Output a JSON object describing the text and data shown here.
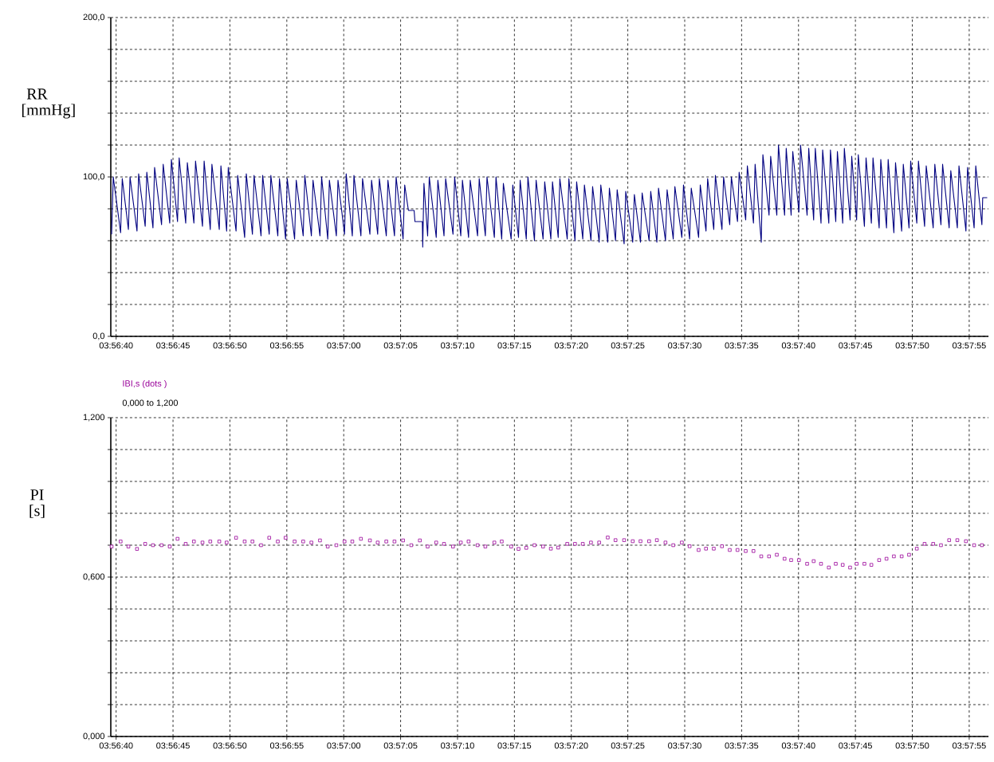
{
  "chart_data": [
    {
      "type": "line",
      "ylabel": "RR [mmHg]",
      "grid": true,
      "xlim": [
        3.94431,
        3.96575
      ],
      "xticks": [
        {
          "value": 3.94444,
          "label": "03:56:40"
        },
        {
          "value": 3.94583,
          "label": "03:56:45"
        },
        {
          "value": 3.94722,
          "label": "03:56:50"
        },
        {
          "value": 3.94861,
          "label": "03:56:55"
        },
        {
          "value": 3.95,
          "label": "03:57:00"
        },
        {
          "value": 3.95139,
          "label": "03:57:05"
        },
        {
          "value": 3.95278,
          "label": "03:57:10"
        },
        {
          "value": 3.95417,
          "label": "03:57:15"
        },
        {
          "value": 3.95556,
          "label": "03:57:20"
        },
        {
          "value": 3.95694,
          "label": "03:57:25"
        },
        {
          "value": 3.95833,
          "label": "03:57:30"
        },
        {
          "value": 3.95972,
          "label": "03:57:35"
        },
        {
          "value": 3.96111,
          "label": "03:57:40"
        },
        {
          "value": 3.9625,
          "label": "03:57:45"
        },
        {
          "value": 3.96389,
          "label": "03:57:50"
        },
        {
          "value": 3.96528,
          "label": "03:57:55"
        }
      ],
      "ylim": [
        0,
        200
      ],
      "yticks": [
        {
          "value": 0,
          "label": "0,0"
        },
        {
          "value": 20,
          "label": null
        },
        {
          "value": 40,
          "label": null
        },
        {
          "value": 60,
          "label": null
        },
        {
          "value": 80,
          "label": null
        },
        {
          "value": 100,
          "label": "100,0"
        },
        {
          "value": 120,
          "label": null
        },
        {
          "value": 140,
          "label": null
        },
        {
          "value": 160,
          "label": null
        },
        {
          "value": 180,
          "label": null
        },
        {
          "value": 200,
          "label": "200,0"
        }
      ],
      "series": [
        {
          "color": "#000080",
          "x": [
            3.94433,
            3.94437,
            3.94455,
            3.94459,
            3.94474,
            3.94478,
            3.94495,
            3.94499,
            3.94515,
            3.94519,
            3.94534,
            3.94538,
            3.94555,
            3.94559,
            3.94575,
            3.94579,
            3.94594,
            3.94598,
            3.94614,
            3.94618,
            3.94634,
            3.94638,
            3.94655,
            3.94659,
            3.94674,
            3.94678,
            3.94696,
            3.947,
            3.94714,
            3.94718,
            3.94737,
            3.94741,
            3.94758,
            3.94762,
            3.94777,
            3.94781,
            3.94798,
            3.94802,
            3.94818,
            3.94822,
            3.94839,
            3.94843,
            3.94858,
            3.94862,
            3.9488,
            3.94884,
            3.94901,
            3.94905,
            3.94921,
            3.94925,
            3.94942,
            3.94946,
            3.94961,
            3.94965,
            3.94982,
            3.94986,
            3.95002,
            3.95006,
            3.95021,
            3.95025,
            3.95042,
            3.95046,
            3.95064,
            3.95068,
            3.95083,
            3.95087,
            3.95104,
            3.95108,
            3.95124,
            3.95128,
            3.95145,
            3.95149,
            3.95158,
            3.95172,
            3.95174,
            3.95192,
            3.95193,
            3.95196,
            3.95205,
            3.95209,
            3.95226,
            3.9523,
            3.95245,
            3.95249,
            3.95267,
            3.95271,
            3.95286,
            3.9529,
            3.95305,
            3.95309,
            3.95327,
            3.95331,
            3.95346,
            3.9535,
            3.95368,
            3.95372,
            3.95386,
            3.9539,
            3.95409,
            3.95413,
            3.95427,
            3.95431,
            3.95446,
            3.9545,
            3.95466,
            3.9547,
            3.95487,
            3.95491,
            3.95506,
            3.9551,
            3.95524,
            3.95528,
            3.95546,
            3.9555,
            3.95565,
            3.95569,
            3.95584,
            3.95588,
            3.95604,
            3.95608,
            3.95624,
            3.95628,
            3.95645,
            3.95649,
            3.95664,
            3.95668,
            3.95685,
            3.95689,
            3.95706,
            3.9571,
            3.95725,
            3.95729,
            3.95746,
            3.9575,
            3.95765,
            3.95769,
            3.95786,
            3.9579,
            3.95805,
            3.95809,
            3.95826,
            3.9583,
            3.95845,
            3.95849,
            3.95867,
            3.95871,
            3.95885,
            3.95889,
            3.95904,
            3.95908,
            3.95924,
            3.95928,
            3.95943,
            3.95947,
            3.95962,
            3.95966,
            3.95982,
            3.95986,
            3.96001,
            3.96005,
            3.9602,
            3.96024,
            3.96039,
            3.96043,
            3.96058,
            3.96062,
            3.96077,
            3.96081,
            3.96093,
            3.96097,
            3.96112,
            3.96116,
            3.96132,
            3.96136,
            3.96148,
            3.96152,
            3.96166,
            3.9617,
            3.96185,
            3.96189,
            3.96202,
            3.96206,
            3.96219,
            3.96223,
            3.96237,
            3.96241,
            3.96253,
            3.96257,
            3.96272,
            3.96276,
            3.96289,
            3.96293,
            3.96308,
            3.96312,
            3.96326,
            3.9633,
            3.96344,
            3.96348,
            3.96363,
            3.96367,
            3.96381,
            3.96385,
            3.964,
            3.96404,
            3.96419,
            3.96423,
            3.9644,
            3.96444,
            3.96459,
            3.96463,
            3.96479,
            3.96483,
            3.96499,
            3.96503,
            3.9652,
            3.96524,
            3.9654,
            3.96544,
            3.96559,
            3.96561,
            3.96572
          ],
          "values": [
            64,
            100,
            65,
            99,
            67,
            100,
            66,
            102,
            69,
            103,
            68,
            106,
            70,
            108,
            71,
            111,
            72,
            112,
            71,
            109,
            71,
            110,
            69,
            110,
            67,
            108,
            67,
            107,
            66,
            106,
            66,
            101,
            62,
            102,
            64,
            101,
            63,
            101,
            64,
            101,
            63,
            99,
            61,
            99,
            61,
            98,
            63,
            101,
            63,
            98,
            63,
            100,
            61,
            98,
            63,
            98,
            64,
            102,
            63,
            101,
            63,
            99,
            64,
            98,
            64,
            99,
            63,
            98,
            63,
            100,
            61,
            95,
            79,
            79,
            72,
            72,
            56,
            96,
            63,
            100,
            62,
            98,
            63,
            99,
            64,
            100,
            63,
            98,
            62,
            98,
            63,
            99,
            63,
            100,
            62,
            100,
            61,
            96,
            61,
            95,
            62,
            98,
            61,
            100,
            60,
            98,
            61,
            97,
            61,
            97,
            62,
            99,
            61,
            99,
            60,
            97,
            61,
            95,
            60,
            94,
            59,
            95,
            59,
            93,
            60,
            92,
            58,
            91,
            59,
            89,
            59,
            90,
            60,
            91,
            59,
            93,
            60,
            92,
            61,
            94,
            62,
            95,
            61,
            93,
            62,
            95,
            66,
            99,
            67,
            101,
            67,
            100,
            70,
            100,
            72,
            103,
            73,
            107,
            71,
            108,
            59,
            114,
            76,
            113,
            76,
            120,
            76,
            118,
            76,
            116,
            78,
            120,
            76,
            118,
            73,
            118,
            71,
            117,
            71,
            117,
            72,
            116,
            71,
            118,
            73,
            113,
            73,
            114,
            69,
            112,
            71,
            112,
            68,
            111,
            68,
            111,
            65,
            109,
            66,
            108,
            68,
            110,
            71,
            110,
            69,
            107,
            68,
            108,
            70,
            108,
            68,
            104,
            68,
            107,
            66,
            106,
            68,
            107,
            70,
            87,
            87
          ]
        }
      ]
    },
    {
      "type": "scatter",
      "ylabel": "PI [s]",
      "grid": true,
      "marker": "square",
      "annotations": [
        "IBI,s (dots )",
        "0,000 to 1,200"
      ],
      "xlim": [
        3.94431,
        3.96575
      ],
      "xticks": [
        {
          "value": 3.94444,
          "label": "03:56:40"
        },
        {
          "value": 3.94583,
          "label": "03:56:45"
        },
        {
          "value": 3.94722,
          "label": "03:56:50"
        },
        {
          "value": 3.94861,
          "label": "03:56:55"
        },
        {
          "value": 3.95,
          "label": "03:57:00"
        },
        {
          "value": 3.95139,
          "label": "03:57:05"
        },
        {
          "value": 3.95278,
          "label": "03:57:10"
        },
        {
          "value": 3.95417,
          "label": "03:57:15"
        },
        {
          "value": 3.95556,
          "label": "03:57:20"
        },
        {
          "value": 3.95694,
          "label": "03:57:25"
        },
        {
          "value": 3.95833,
          "label": "03:57:30"
        },
        {
          "value": 3.95972,
          "label": "03:57:35"
        },
        {
          "value": 3.96111,
          "label": "03:57:40"
        },
        {
          "value": 3.9625,
          "label": "03:57:45"
        },
        {
          "value": 3.96389,
          "label": "03:57:50"
        },
        {
          "value": 3.96528,
          "label": "03:57:55"
        }
      ],
      "ylim": [
        0,
        1.2
      ],
      "yticks": [
        {
          "value": 0,
          "label": "0,000"
        },
        {
          "value": 0.12,
          "label": null
        },
        {
          "value": 0.24,
          "label": null
        },
        {
          "value": 0.36,
          "label": null
        },
        {
          "value": 0.48,
          "label": null
        },
        {
          "value": 0.6,
          "label": "0,600"
        },
        {
          "value": 0.72,
          "label": null
        },
        {
          "value": 0.84,
          "label": null
        },
        {
          "value": 0.96,
          "label": null
        },
        {
          "value": 1.08,
          "label": null
        },
        {
          "value": 1.2,
          "label": "1,200"
        }
      ],
      "series": [
        {
          "color": "#990099",
          "x": [
            3.94433,
            3.94455,
            3.94474,
            3.94495,
            3.94515,
            3.94534,
            3.94555,
            3.94575,
            3.94594,
            3.94614,
            3.94634,
            3.94655,
            3.94674,
            3.94696,
            3.94714,
            3.94737,
            3.94758,
            3.94777,
            3.94798,
            3.94818,
            3.94839,
            3.94858,
            3.9488,
            3.94901,
            3.94921,
            3.94942,
            3.94961,
            3.94982,
            3.95002,
            3.95021,
            3.95042,
            3.95064,
            3.95083,
            3.95104,
            3.95124,
            3.95145,
            3.95165,
            3.95186,
            3.95205,
            3.95226,
            3.95245,
            3.95267,
            3.95286,
            3.95305,
            3.95327,
            3.95346,
            3.95368,
            3.95386,
            3.95409,
            3.95427,
            3.95446,
            3.95466,
            3.95487,
            3.95506,
            3.95524,
            3.95546,
            3.95565,
            3.95584,
            3.95604,
            3.95624,
            3.95645,
            3.95664,
            3.95685,
            3.95706,
            3.95725,
            3.95746,
            3.95765,
            3.95786,
            3.95805,
            3.95826,
            3.95845,
            3.95867,
            3.95885,
            3.95904,
            3.95924,
            3.95943,
            3.95962,
            3.95982,
            3.96001,
            3.9602,
            3.96039,
            3.96058,
            3.96077,
            3.96093,
            3.96112,
            3.96132,
            3.96148,
            3.96166,
            3.96185,
            3.96202,
            3.96219,
            3.96237,
            3.96253,
            3.96272,
            3.96289,
            3.96308,
            3.96326,
            3.96344,
            3.96363,
            3.96381,
            3.964,
            3.96419,
            3.9644,
            3.96459,
            3.96479,
            3.96499,
            3.9652,
            3.9654,
            3.96559
          ],
          "values": [
            0.715,
            0.734,
            0.715,
            0.706,
            0.725,
            0.72,
            0.72,
            0.715,
            0.744,
            0.725,
            0.734,
            0.73,
            0.734,
            0.734,
            0.73,
            0.748,
            0.734,
            0.734,
            0.72,
            0.748,
            0.734,
            0.748,
            0.734,
            0.734,
            0.73,
            0.738,
            0.715,
            0.72,
            0.734,
            0.734,
            0.744,
            0.738,
            0.73,
            0.734,
            0.734,
            0.738,
            0.72,
            0.738,
            0.715,
            0.73,
            0.725,
            0.715,
            0.73,
            0.734,
            0.72,
            0.715,
            0.73,
            0.734,
            0.715,
            0.706,
            0.71,
            0.72,
            0.715,
            0.707,
            0.711,
            0.725,
            0.725,
            0.725,
            0.73,
            0.73,
            0.749,
            0.739,
            0.739,
            0.735,
            0.735,
            0.735,
            0.739,
            0.73,
            0.72,
            0.73,
            0.716,
            0.702,
            0.707,
            0.707,
            0.716,
            0.702,
            0.702,
            0.698,
            0.698,
            0.678,
            0.678,
            0.684,
            0.669,
            0.664,
            0.664,
            0.65,
            0.66,
            0.65,
            0.636,
            0.65,
            0.646,
            0.636,
            0.65,
            0.65,
            0.646,
            0.664,
            0.669,
            0.678,
            0.678,
            0.684,
            0.707,
            0.725,
            0.725,
            0.72,
            0.739,
            0.739,
            0.735,
            0.72,
            0.72
          ]
        }
      ]
    }
  ]
}
